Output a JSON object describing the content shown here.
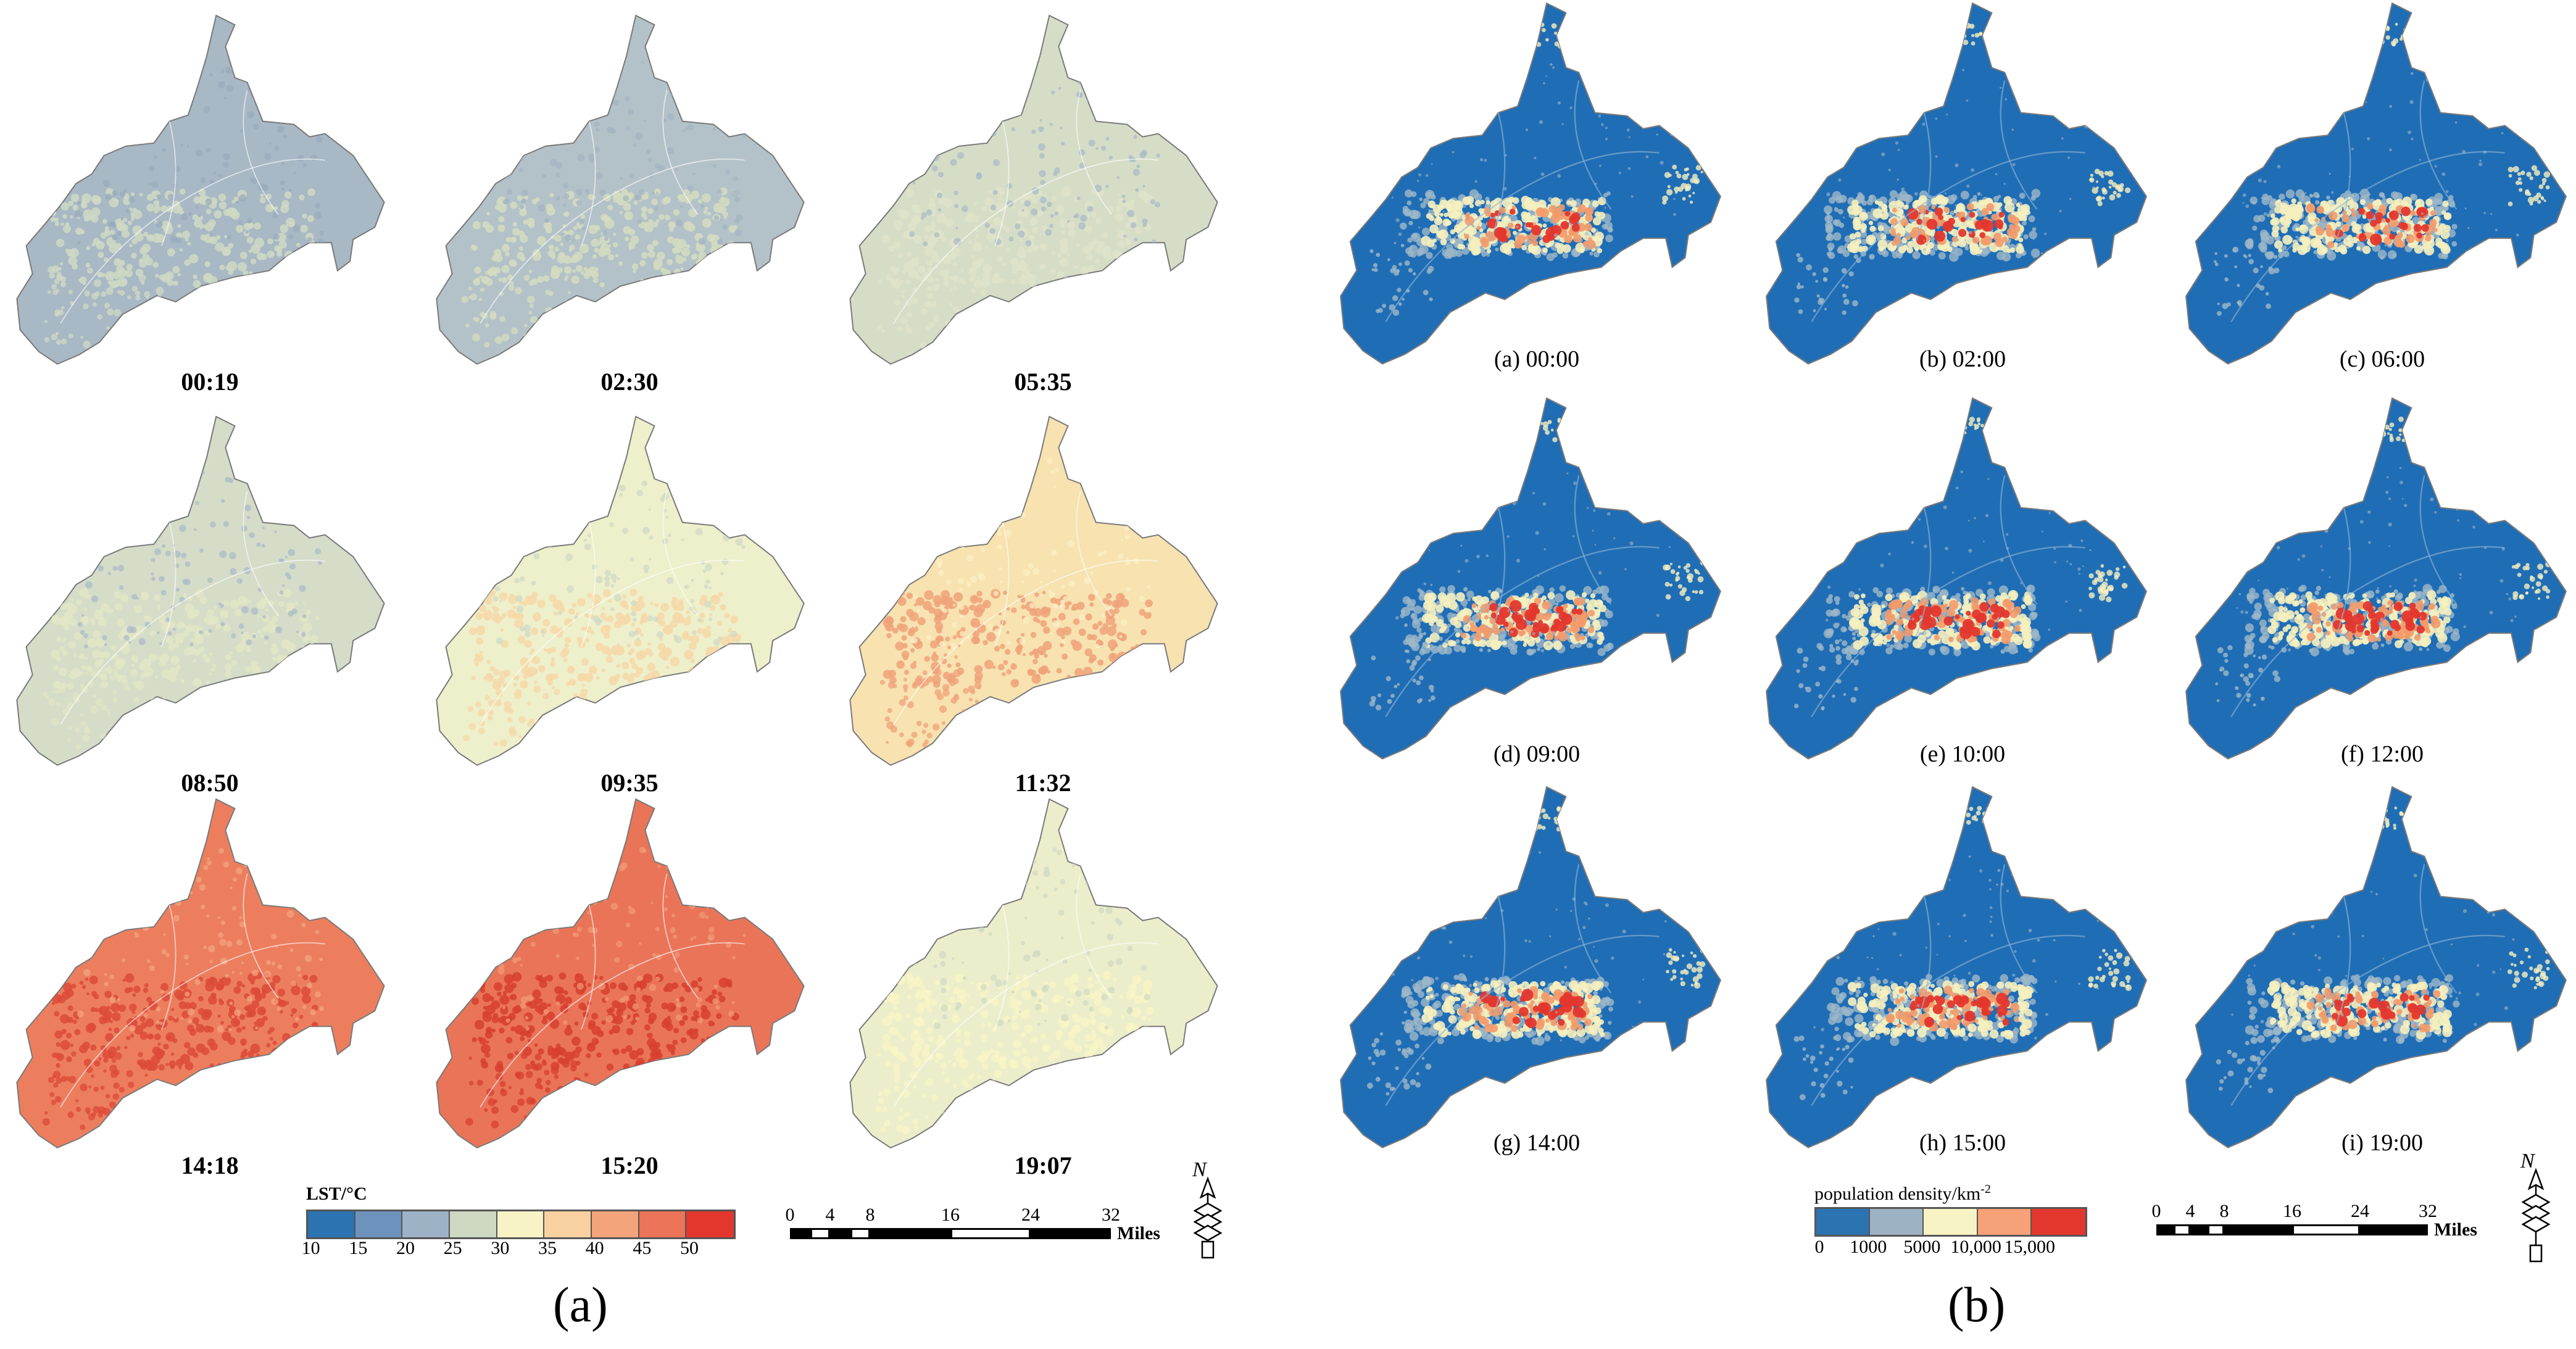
{
  "panel_a": {
    "label": "(a)",
    "maps": [
      {
        "caption": "00:19",
        "fill": "#a8b8c4",
        "hot": "#cfd9c4",
        "hot2": "#98aabc"
      },
      {
        "caption": "02:30",
        "fill": "#b3c2c8",
        "hot": "#d4dcbf",
        "hot2": "#a2b4c2"
      },
      {
        "caption": "05:35",
        "fill": "#d6ddc7",
        "hot": "#dfe3c9",
        "hot2": "#a8b9c6"
      },
      {
        "caption": "08:50",
        "fill": "#d5dcc8",
        "hot": "#e2e6c6",
        "hot2": "#aab9c6"
      },
      {
        "caption": "09:35",
        "fill": "#eeefcb",
        "hot": "#f6d8a8",
        "hot2": "#cfd9c4"
      },
      {
        "caption": "11:32",
        "fill": "#f7e2b0",
        "hot": "#f0a27a",
        "hot2": "#fbf1c4"
      },
      {
        "caption": "14:18",
        "fill": "#ec7e5e",
        "hot": "#dd4a38",
        "hot2": "#f3a680"
      },
      {
        "caption": "15:20",
        "fill": "#ea7458",
        "hot": "#d7402f",
        "hot2": "#f19b78"
      },
      {
        "caption": "19:07",
        "fill": "#eceecb",
        "hot": "#f8f4c6",
        "hot2": "#d0d9c2"
      }
    ],
    "legend": {
      "title": "LST/°C",
      "colors": [
        "#2c73b2",
        "#6d93bd",
        "#9eb2c5",
        "#cfd8c2",
        "#f7f3c4",
        "#f9d1a0",
        "#f4a47b",
        "#ec7459",
        "#e3372e"
      ],
      "ticks": [
        "10",
        "15",
        "20",
        "25",
        "30",
        "35",
        "40",
        "45",
        "50"
      ]
    },
    "scalebar": {
      "ticks": [
        "0",
        "4",
        "8",
        "16",
        "24",
        "32"
      ],
      "unit": "Miles"
    },
    "north_label": "N"
  },
  "panel_b": {
    "label": "(b)",
    "maps": [
      {
        "caption": "(a) 00:00"
      },
      {
        "caption": "(b) 02:00"
      },
      {
        "caption": "(c) 06:00"
      },
      {
        "caption": "(d) 09:00"
      },
      {
        "caption": "(e) 10:00"
      },
      {
        "caption": "(f) 12:00"
      },
      {
        "caption": "(g) 14:00"
      },
      {
        "caption": "(h) 15:00"
      },
      {
        "caption": "(i) 19:00"
      }
    ],
    "map_colors": {
      "background": "#1f6db5",
      "urban_low": "#9fb8c8",
      "urban_mid": "#f6efbf",
      "urban_high": "#f39a6a",
      "urban_peak": "#e3372e"
    },
    "legend": {
      "title": "population density/km",
      "title_sup": "-2",
      "colors": [
        "#2c73b2",
        "#9eb2c5",
        "#f7f3c4",
        "#f6a177",
        "#e3372e"
      ],
      "ticks": [
        "0",
        "1000",
        "5000",
        "10,000",
        "15,000"
      ]
    },
    "scalebar": {
      "ticks": [
        "0",
        "4",
        "8",
        "16",
        "24",
        "32"
      ],
      "unit": "Miles"
    },
    "north_label": "N"
  }
}
